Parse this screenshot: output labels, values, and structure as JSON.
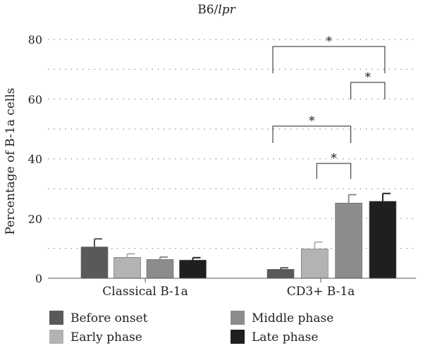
{
  "chart_data": {
    "type": "bar",
    "title": "B6/lpr",
    "title_parts": {
      "prefix": "B6/",
      "italic": "lpr"
    },
    "ylabel": "Percentage of B-1a cells",
    "xlabel": "",
    "ylim": [
      0,
      80
    ],
    "yticks": [
      "0",
      "20",
      "40",
      "60",
      "80"
    ],
    "grid": "dotted-horizontal",
    "legend_position": "bottom",
    "categories": [
      "Classical B-1a",
      "CD3+ B-1a"
    ],
    "series": [
      {
        "name": "Before onset",
        "color": "#595959",
        "values": [
          10.5,
          3.0
        ],
        "errors": [
          2.7,
          0.5
        ]
      },
      {
        "name": "Early phase",
        "color": "#b3b3b3",
        "values": [
          7.0,
          9.8
        ],
        "errors": [
          1.2,
          2.3
        ]
      },
      {
        "name": "Middle phase",
        "color": "#8c8c8c",
        "values": [
          6.3,
          25.2
        ],
        "errors": [
          0.8,
          2.8
        ]
      },
      {
        "name": "Late phase",
        "color": "#1f1f1f",
        "values": [
          6.1,
          25.8
        ],
        "errors": [
          0.8,
          2.6
        ]
      }
    ],
    "significance": [
      {
        "category": 1,
        "from_series": 0,
        "to_series": 3,
        "label": "*"
      },
      {
        "category": 1,
        "from_series": 2,
        "to_series": 3,
        "label": "*"
      },
      {
        "category": 1,
        "from_series": 0,
        "to_series": 2,
        "label": "*"
      },
      {
        "category": 1,
        "from_series": 1,
        "to_series": 2,
        "label": "*"
      }
    ]
  }
}
